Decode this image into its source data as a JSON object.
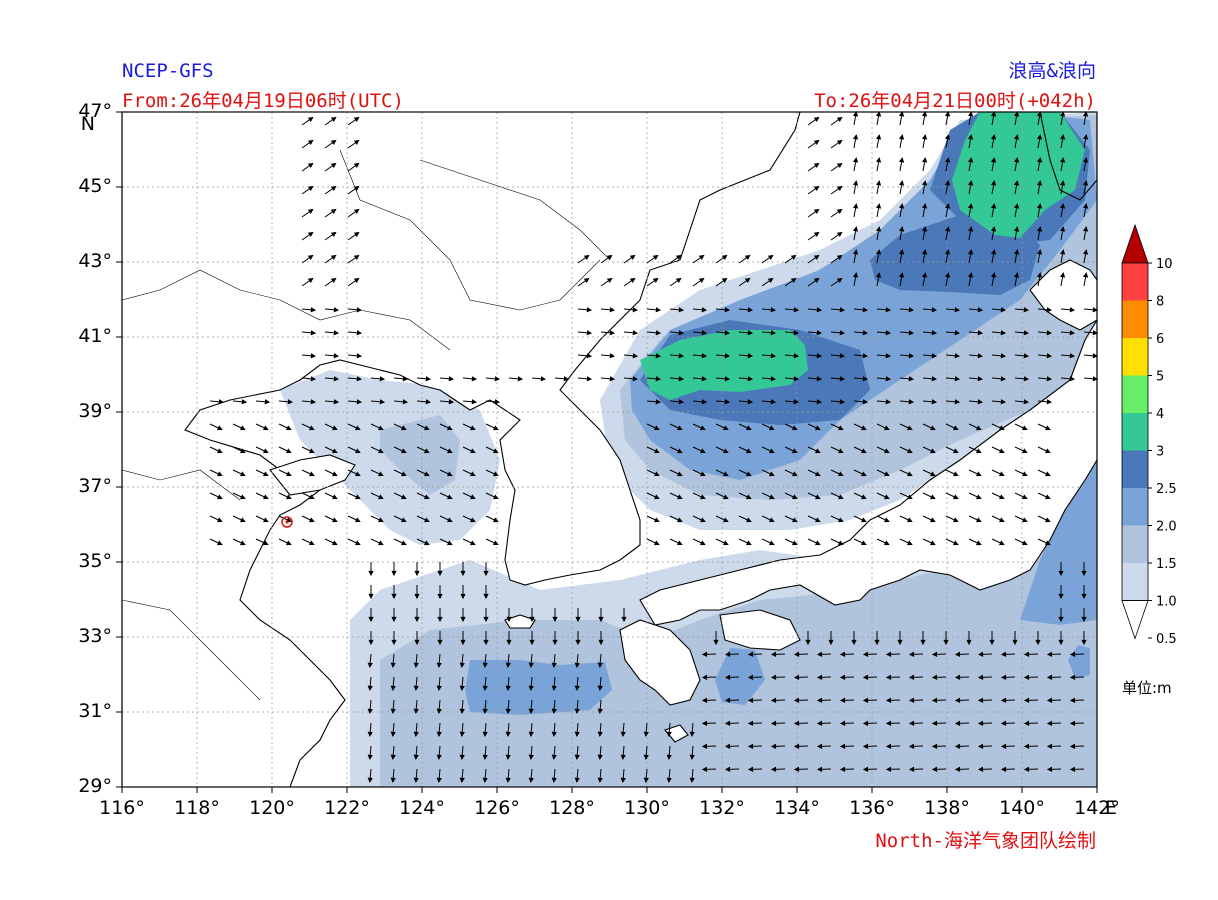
{
  "header": {
    "model": "NCEP-GFS",
    "product": "浪高&浪向",
    "from": "From:26年04月19日06时(UTC)",
    "to": "To:26年04月21日00时(+042h)"
  },
  "footer": {
    "credit": "North-海洋气象团队绘制"
  },
  "axes": {
    "lat_labels": [
      "47°",
      "45°",
      "43°",
      "41°",
      "39°",
      "37°",
      "35°",
      "33°",
      "31°",
      "29°"
    ],
    "lat_unit": "N",
    "lon_labels": [
      "116°",
      "118°",
      "120°",
      "122°",
      "124°",
      "126°",
      "128°",
      "130°",
      "132°",
      "134°",
      "136°",
      "138°",
      "140°",
      "142°"
    ],
    "lon_unit": "E",
    "lat_range": [
      29,
      47
    ],
    "lon_range": [
      116,
      142
    ]
  },
  "colorbar": {
    "labels": [
      "10",
      "8",
      "6",
      "5",
      "4",
      "3",
      "2.5",
      "2.0",
      "1.5",
      "1.0",
      "0.5"
    ],
    "colors": [
      "#b50000",
      "#ff4040",
      "#ff8c00",
      "#ffe000",
      "#66ee66",
      "#33c896",
      "#4a78b8",
      "#7aa4d8",
      "#b0c4de",
      "#cddaeb",
      "#ffffff"
    ],
    "unit": "单位:m"
  }
}
